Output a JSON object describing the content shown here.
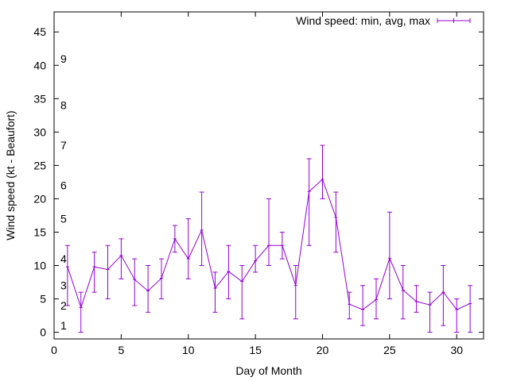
{
  "chart_data": {
    "type": "line",
    "title": "",
    "xlabel": "Day of Month",
    "ylabel": "Wind speed (kt - Beaufort)",
    "xlim": [
      0,
      32
    ],
    "ylim": [
      -1,
      48
    ],
    "xticks": [
      0,
      5,
      10,
      15,
      20,
      25,
      30
    ],
    "yticks": [
      0,
      5,
      10,
      15,
      20,
      25,
      30,
      35,
      40,
      45
    ],
    "grid": false,
    "legend_position": "top-right",
    "beaufort_levels": [
      {
        "label": "1",
        "y": 1
      },
      {
        "label": "2",
        "y": 4
      },
      {
        "label": "3",
        "y": 7
      },
      {
        "label": "4",
        "y": 11
      },
      {
        "label": "5",
        "y": 17
      },
      {
        "label": "6",
        "y": 22
      },
      {
        "label": "7",
        "y": 28
      },
      {
        "label": "8",
        "y": 34
      },
      {
        "label": "9",
        "y": 41
      }
    ],
    "series": [
      {
        "name": "Wind speed: min, avg, max",
        "color": "#9400d3",
        "x": [
          1,
          2,
          3,
          4,
          5,
          6,
          7,
          8,
          9,
          10,
          11,
          12,
          13,
          14,
          15,
          16,
          17,
          18,
          19,
          20,
          21,
          22,
          23,
          24,
          25,
          26,
          27,
          28,
          29,
          30,
          31
        ],
        "avg": [
          9.8,
          3.7,
          9.8,
          9.4,
          11.5,
          7.9,
          6.2,
          8.1,
          14.0,
          11.0,
          15.3,
          6.6,
          9.1,
          7.6,
          10.7,
          13.0,
          13.0,
          7.0,
          21.1,
          22.9,
          17.2,
          4.2,
          3.4,
          4.9,
          11.1,
          6.3,
          4.6,
          4.1,
          6.0,
          3.4,
          4.3
        ],
        "min": [
          4,
          0,
          6,
          5,
          8,
          4,
          3,
          5,
          12,
          8,
          10,
          3,
          5,
          2,
          9,
          10,
          11,
          2,
          13,
          20,
          12,
          2,
          1,
          2,
          5,
          2,
          3,
          0,
          1,
          0,
          0
        ],
        "max": [
          13,
          6,
          12,
          13,
          14,
          11,
          10,
          11,
          16,
          17,
          21,
          9,
          13,
          10,
          13,
          20,
          15,
          10,
          26,
          28,
          21,
          6,
          7,
          8,
          18,
          10,
          7,
          6,
          10,
          5,
          7
        ]
      }
    ]
  }
}
